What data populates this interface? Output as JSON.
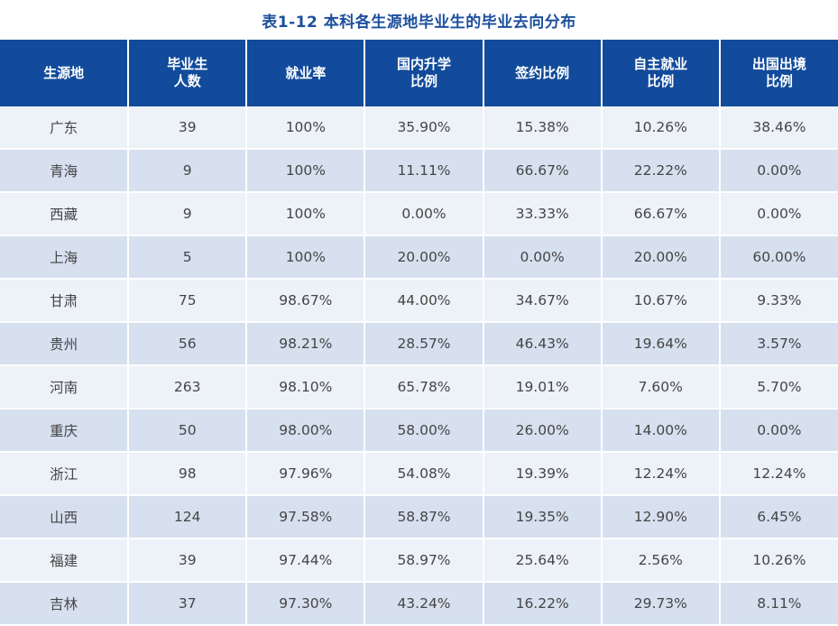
{
  "table": {
    "title": "表1-12   本科各生源地毕业生的毕业去向分布",
    "headers": [
      "生源地",
      "毕业生\n人数",
      "就业率",
      "国内升学\n比例",
      "签约比例",
      "自主就业\n比例",
      "出国出境\n比例"
    ],
    "rows": [
      [
        "广东",
        "39",
        "100%",
        "35.90%",
        "15.38%",
        "10.26%",
        "38.46%"
      ],
      [
        "青海",
        "9",
        "100%",
        "11.11%",
        "66.67%",
        "22.22%",
        "0.00%"
      ],
      [
        "西藏",
        "9",
        "100%",
        "0.00%",
        "33.33%",
        "66.67%",
        "0.00%"
      ],
      [
        "上海",
        "5",
        "100%",
        "20.00%",
        "0.00%",
        "20.00%",
        "60.00%"
      ],
      [
        "甘肃",
        "75",
        "98.67%",
        "44.00%",
        "34.67%",
        "10.67%",
        "9.33%"
      ],
      [
        "贵州",
        "56",
        "98.21%",
        "28.57%",
        "46.43%",
        "19.64%",
        "3.57%"
      ],
      [
        "河南",
        "263",
        "98.10%",
        "65.78%",
        "19.01%",
        "7.60%",
        "5.70%"
      ],
      [
        "重庆",
        "50",
        "98.00%",
        "58.00%",
        "26.00%",
        "14.00%",
        "0.00%"
      ],
      [
        "浙江",
        "98",
        "97.96%",
        "54.08%",
        "19.39%",
        "12.24%",
        "12.24%"
      ],
      [
        "山西",
        "124",
        "97.58%",
        "58.87%",
        "19.35%",
        "12.90%",
        "6.45%"
      ],
      [
        "福建",
        "39",
        "97.44%",
        "58.97%",
        "25.64%",
        "2.56%",
        "10.26%"
      ],
      [
        "吉林",
        "37",
        "97.30%",
        "43.24%",
        "16.22%",
        "29.73%",
        "8.11%"
      ]
    ]
  }
}
